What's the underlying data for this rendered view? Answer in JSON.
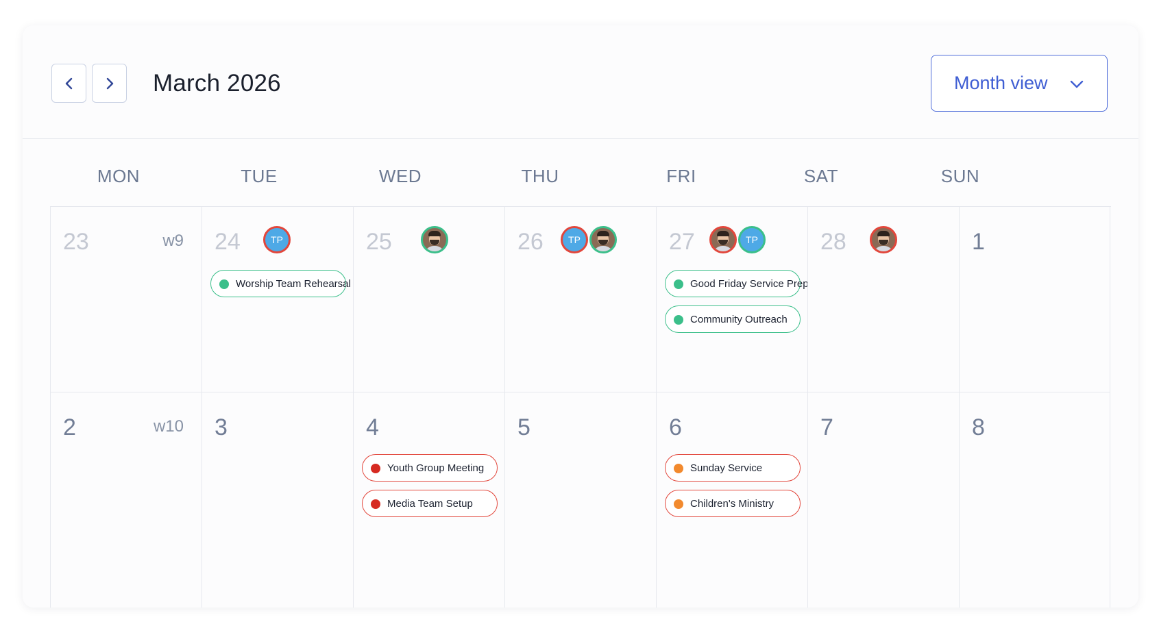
{
  "header": {
    "prev_label": "",
    "next_label": "",
    "title": "March 2026",
    "view_select": "Month view"
  },
  "days_of_week": [
    "MON",
    "TUE",
    "WED",
    "THU",
    "FRI",
    "SAT",
    "SUN"
  ],
  "week1": {
    "week_label": "w9",
    "days": [
      {
        "num": "23"
      },
      {
        "num": "24",
        "avatar_initials": "TP",
        "events": [
          {
            "label": "Worship Team Rehearsal"
          }
        ]
      },
      {
        "num": "25"
      },
      {
        "num": "26",
        "avatar_initials": "TP"
      },
      {
        "num": "27",
        "avatar_initials": "TP",
        "events": [
          {
            "label": "Good Friday Service Prep"
          },
          {
            "label": "Community Outreach"
          }
        ]
      },
      {
        "num": "28"
      },
      {
        "num": "1"
      }
    ]
  },
  "week2": {
    "week_label": "w10",
    "days": [
      {
        "num": "2"
      },
      {
        "num": "3"
      },
      {
        "num": "4",
        "events": [
          {
            "label": "Youth Group Meeting"
          },
          {
            "label": "Media Team Setup"
          }
        ]
      },
      {
        "num": "5"
      },
      {
        "num": "6",
        "events": [
          {
            "label": "Sunday Service"
          },
          {
            "label": "Children's Ministry"
          }
        ]
      },
      {
        "num": "7"
      },
      {
        "num": "8"
      }
    ]
  },
  "colors": {
    "accent": "#3f5ed3",
    "event_green": "#3bbf8a",
    "event_red": "#d62a21",
    "event_orange": "#f28a2e",
    "avatar_border": "#e2463b"
  },
  "icons": {
    "prev": "chevron-left-icon",
    "next": "chevron-right-icon",
    "dropdown": "chevron-down-icon"
  }
}
